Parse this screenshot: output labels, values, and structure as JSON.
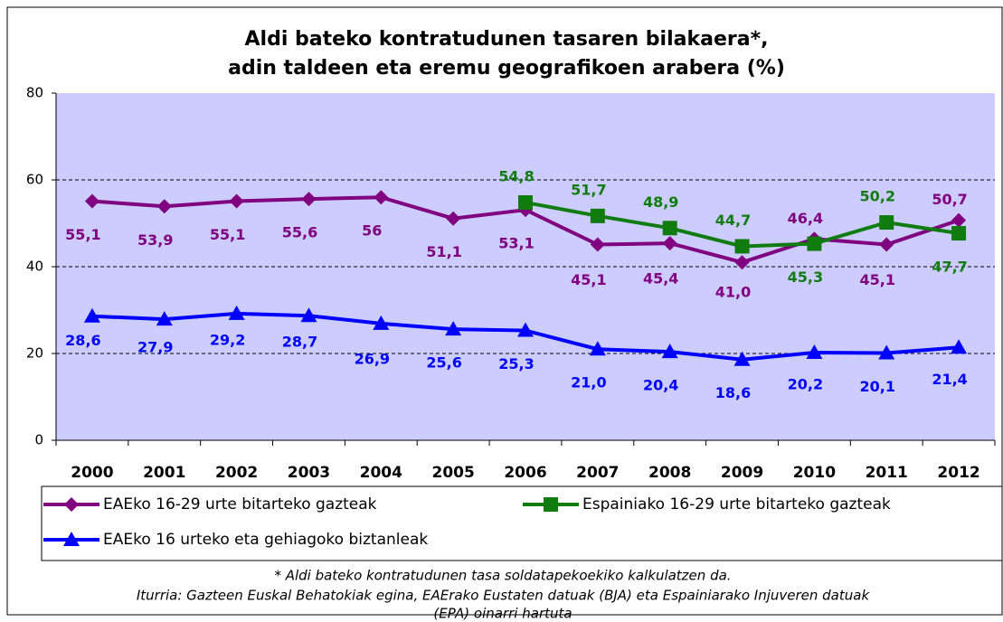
{
  "chart_data": {
    "type": "line",
    "title": [
      "Aldi bateko kontratudunen tasaren bilakaera*,",
      "adin taldeen eta eremu geografikoen arabera (%)"
    ],
    "categories": [
      "2000",
      "2001",
      "2002",
      "2003",
      "2004",
      "2005",
      "2006",
      "2007",
      "2008",
      "2009",
      "2010",
      "2011",
      "2012"
    ],
    "series": [
      {
        "name": "EAEko 16-29 urte bitarteko gazteak",
        "color": "#800080",
        "marker": "diamond",
        "values": [
          55.1,
          53.9,
          55.1,
          55.6,
          56,
          51.1,
          53.1,
          45.1,
          45.4,
          41.0,
          46.4,
          45.1,
          50.7
        ],
        "value_labels": [
          "55,1",
          "53,9",
          "55,1",
          "55,6",
          "56",
          "51,1",
          "53,1",
          "45,1",
          "45,4",
          "41,0",
          "46,4",
          "45,1",
          "50,7"
        ]
      },
      {
        "name": "Espainiako 16-29 urte bitarteko gazteak",
        "color": "#107c10",
        "marker": "square",
        "values": [
          null,
          null,
          null,
          null,
          null,
          null,
          54.8,
          51.7,
          48.9,
          44.7,
          45.3,
          50.2,
          47.7
        ],
        "value_labels": [
          null,
          null,
          null,
          null,
          null,
          null,
          "54,8",
          "51,7",
          "48,9",
          "44,7",
          "45,3",
          "50,2",
          "47,7"
        ]
      },
      {
        "name": "EAEko 16 urteko eta gehiagoko biztanleak",
        "color": "#0000ff",
        "marker": "triangle",
        "values": [
          28.6,
          27.9,
          29.2,
          28.7,
          26.9,
          25.6,
          25.3,
          21.0,
          20.4,
          18.6,
          20.2,
          20.1,
          21.4
        ],
        "value_labels": [
          "28,6",
          "27,9",
          "29,2",
          "28,7",
          "26,9",
          "25,6",
          "25,3",
          "21,0",
          "20,4",
          "18,6",
          "20,2",
          "20,1",
          "21,4"
        ]
      }
    ],
    "ylim": [
      0,
      80
    ],
    "yticks": [
      0,
      20,
      40,
      60,
      80
    ],
    "grid": true,
    "footnotes": [
      "* Aldi bateko kontratudunen tasa soldatapekoekiko kalkulatzen da.",
      "Iturria: Gazteen Euskal Behatokiak egina, EAErako Eustaten datuak (BJA) eta Espainiarako Injuveren datuak",
      "(EPA) oinarri hartuta"
    ]
  }
}
